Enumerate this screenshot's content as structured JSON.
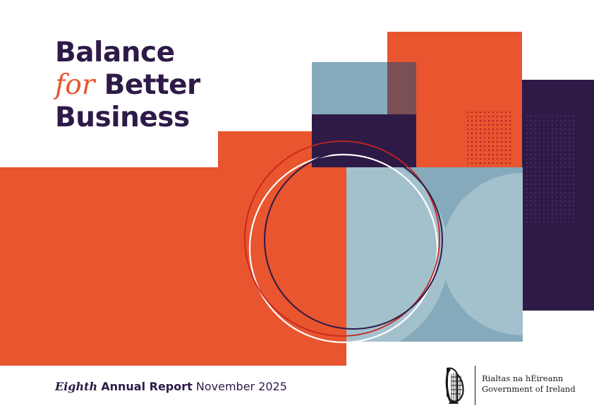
{
  "cover": {
    "title_line1": "Balance",
    "title_for": "for",
    "title_line2_rest": "Better",
    "title_line3": "Business",
    "edition": "Eighth",
    "report_type": "Annual Report",
    "date": "November 2025"
  },
  "government": {
    "irish_name": "Rialtas na hÉireann",
    "english_name": "Government of Ireland",
    "emblem": "harp-icon"
  },
  "colors": {
    "purple": "#2e1a47",
    "orange": "#e8552f",
    "light_blue": "#a3c1cd",
    "steel_blue": "#85aabb",
    "white": "#ffffff"
  }
}
